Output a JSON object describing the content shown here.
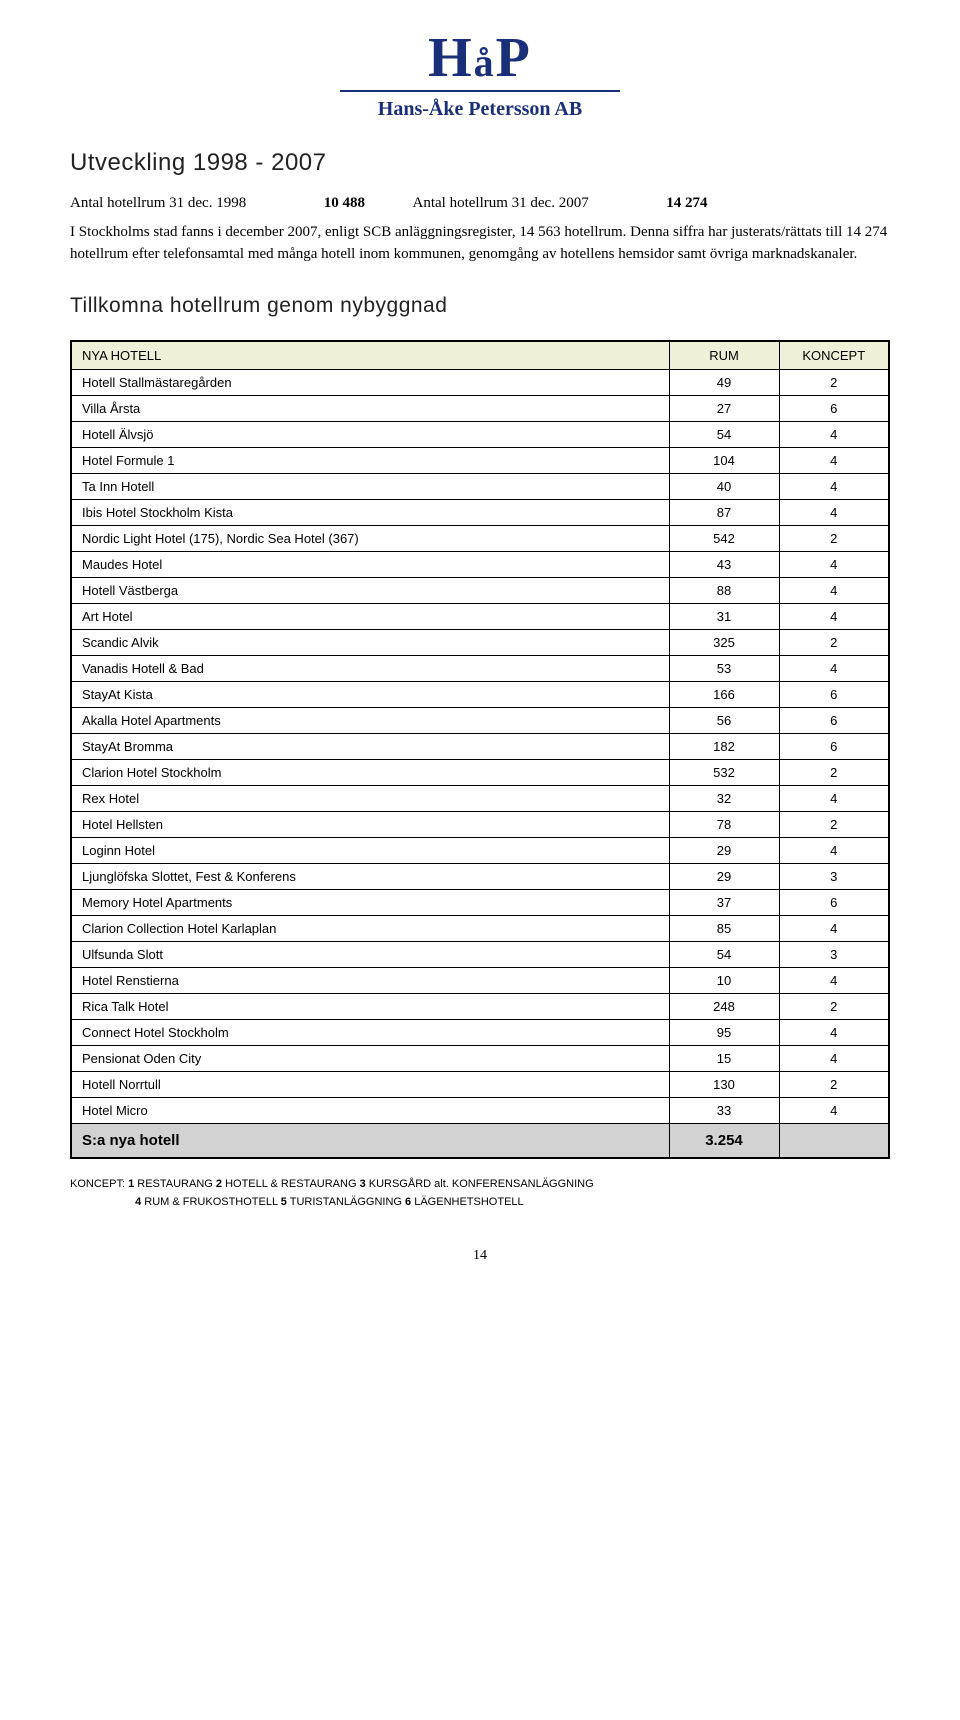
{
  "logo": {
    "main": "HåP",
    "sub": "Hans-Åke Petersson AB"
  },
  "section_title": "Utveckling 1998 - 2007",
  "intro": {
    "row1_label": "Antal hotellrum 31 dec. 1998",
    "row1_value": "10 488",
    "row2_label": "Antal hotellrum 31 dec. 2007",
    "row2_value": "14 274"
  },
  "paragraph": "I Stockholms stad fanns i december 2007, enligt SCB anläggningsregister, 14 563 hotellrum. Denna siffra har justerats/rättats till 14 274 hotellrum efter telefonsamtal med många hotell inom kommunen, genomgång av hotellens hemsidor samt övriga marknadskanaler.",
  "sub_title": "Tillkomna hotellrum genom nybyggnad",
  "table": {
    "headers": [
      "NYA HOTELL",
      "RUM",
      "KONCEPT"
    ],
    "rows": [
      [
        "Hotell Stallmästaregården",
        "49",
        "2"
      ],
      [
        "Villa Årsta",
        "27",
        "6"
      ],
      [
        "Hotell Älvsjö",
        "54",
        "4"
      ],
      [
        "Hotel Formule 1",
        "104",
        "4"
      ],
      [
        "Ta Inn Hotell",
        "40",
        "4"
      ],
      [
        "Ibis Hotel Stockholm Kista",
        "87",
        "4"
      ],
      [
        "Nordic Light Hotel (175), Nordic Sea Hotel (367)",
        "542",
        "2"
      ],
      [
        "Maudes Hotel",
        "43",
        "4"
      ],
      [
        "Hotell Västberga",
        "88",
        "4"
      ],
      [
        "Art Hotel",
        "31",
        "4"
      ],
      [
        "Scandic Alvik",
        "325",
        "2"
      ],
      [
        "Vanadis Hotell & Bad",
        "53",
        "4"
      ],
      [
        "StayAt Kista",
        "166",
        "6"
      ],
      [
        "Akalla Hotel Apartments",
        "56",
        "6"
      ],
      [
        "StayAt Bromma",
        "182",
        "6"
      ],
      [
        "Clarion Hotel Stockholm",
        "532",
        "2"
      ],
      [
        "Rex Hotel",
        "32",
        "4"
      ],
      [
        "Hotel Hellsten",
        "78",
        "2"
      ],
      [
        "Loginn Hotel",
        "29",
        "4"
      ],
      [
        "Ljunglöfska Slottet, Fest & Konferens",
        "29",
        "3"
      ],
      [
        "Memory Hotel Apartments",
        "37",
        "6"
      ],
      [
        "Clarion Collection Hotel Karlaplan",
        "85",
        "4"
      ],
      [
        "Ulfsunda Slott",
        "54",
        "3"
      ],
      [
        "Hotel Renstierna",
        "10",
        "4"
      ],
      [
        "Rica Talk Hotel",
        "248",
        "2"
      ],
      [
        "Connect Hotel Stockholm",
        "95",
        "4"
      ],
      [
        "Pensionat Oden City",
        "15",
        "4"
      ],
      [
        "Hotell Norrtull",
        "130",
        "2"
      ],
      [
        "Hotel Micro",
        "33",
        "4"
      ]
    ],
    "total_label": "S:a nya hotell",
    "total_value": "3.254"
  },
  "footnote": {
    "label": "KONCEPT:",
    "items": [
      {
        "n": "1",
        "t": "RESTAURANG"
      },
      {
        "n": "2",
        "t": "HOTELL & RESTAURANG"
      },
      {
        "n": "3",
        "t": "KURSGÅRD alt. KONFERENSANLÄGGNING"
      },
      {
        "n": "4",
        "t": "RUM & FRUKOSTHOTELL"
      },
      {
        "n": "5",
        "t": "TURISTANLÄGGNING"
      },
      {
        "n": "6",
        "t": "LÄGENHETSHOTELL"
      }
    ]
  },
  "page_number": "14",
  "colors": {
    "header_bg": "#eef1d8",
    "total_bg": "#d2d2d2",
    "logo_color": "#1a2f7a",
    "border": "#000000"
  }
}
